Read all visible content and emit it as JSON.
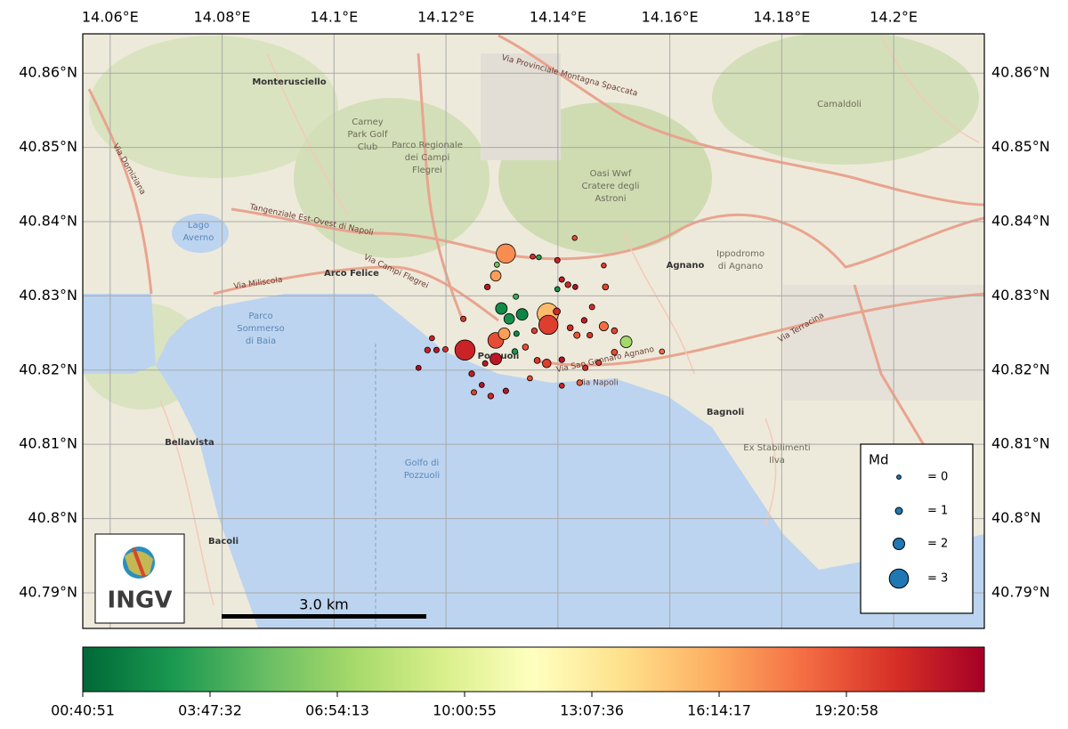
{
  "chart_data": {
    "type": "scatter",
    "xlim": [
      14.0551,
      14.2162
    ],
    "ylim": [
      40.7852,
      40.8653
    ],
    "xticks": [
      {
        "value": 14.06,
        "label": "14.06°E"
      },
      {
        "value": 14.08,
        "label": "14.08°E"
      },
      {
        "value": 14.1,
        "label": "14.1°E"
      },
      {
        "value": 14.12,
        "label": "14.12°E"
      },
      {
        "value": 14.14,
        "label": "14.14°E"
      },
      {
        "value": 14.16,
        "label": "14.16°E"
      },
      {
        "value": 14.18,
        "label": "14.18°E"
      },
      {
        "value": 14.2,
        "label": "14.2°E"
      }
    ],
    "yticks": [
      {
        "value": 40.79,
        "label": "40.79°N"
      },
      {
        "value": 40.8,
        "label": "40.8°N"
      },
      {
        "value": 40.81,
        "label": "40.81°N"
      },
      {
        "value": 40.82,
        "label": "40.82°N"
      },
      {
        "value": 40.83,
        "label": "40.83°N"
      },
      {
        "value": 40.84,
        "label": "40.84°N"
      },
      {
        "value": 40.85,
        "label": "40.85°N"
      },
      {
        "value": 40.86,
        "label": "40.86°N"
      }
    ],
    "grid": true,
    "x": [
      14.1382,
      14.1234,
      14.1307,
      14.1383,
      14.1289,
      14.1289,
      14.1304,
      14.1289,
      14.1299,
      14.1336,
      14.1313,
      14.1522,
      14.1482,
      14.138,
      14.1398,
      14.1323,
      14.1326,
      14.143,
      14.1355,
      14.1399,
      14.1482,
      14.1274,
      14.1407,
      14.1418,
      14.1431,
      14.1485,
      14.1231,
      14.1183,
      14.1167,
      14.1151,
      14.1199,
      14.1246,
      14.1264,
      14.125,
      14.128,
      14.1307,
      14.135,
      14.1407,
      14.1439,
      14.1449,
      14.1473,
      14.1501,
      14.1586,
      14.1457,
      14.1501,
      14.1434,
      14.1422,
      14.1447,
      14.1461,
      14.1407,
      14.1363,
      14.1175,
      14.127,
      14.1358,
      14.1342,
      14.1366,
      14.1399,
      14.1325,
      14.1291
    ],
    "y": [
      40.8276,
      40.8227,
      40.8357,
      40.8261,
      40.8327,
      40.824,
      40.8249,
      40.8215,
      40.8283,
      40.8275,
      40.8269,
      40.8238,
      40.8259,
      40.8209,
      40.8279,
      40.8225,
      40.8249,
      40.8378,
      40.8353,
      40.8348,
      40.8341,
      40.8312,
      40.8322,
      40.8315,
      40.8312,
      40.8312,
      40.8269,
      40.8227,
      40.8227,
      40.8203,
      40.8228,
      40.8195,
      40.818,
      40.817,
      40.8165,
      40.8172,
      40.8189,
      40.8179,
      40.8183,
      40.8203,
      40.821,
      40.8224,
      40.8225,
      40.8247,
      40.8253,
      40.8247,
      40.8257,
      40.8267,
      40.8285,
      40.8214,
      40.8213,
      40.8243,
      40.8209,
      40.8253,
      40.8231,
      40.8352,
      40.8309,
      40.8299,
      40.8342
    ],
    "md": [
      3.2,
      3.1,
      3,
      3,
      1.8,
      2.6,
      2,
      2,
      2,
      2,
      1.8,
      2,
      1.5,
      1.4,
      1,
      0.6,
      0.5,
      0.3,
      0.4,
      0.5,
      0.3,
      0.6,
      0.5,
      0.6,
      0.4,
      0.7,
      0.5,
      0.5,
      0.6,
      0.4,
      0.5,
      0.6,
      0.4,
      0.5,
      0.6,
      0.5,
      0.4,
      0.4,
      0.6,
      0.5,
      0.5,
      0.7,
      0.4,
      0.6,
      0.7,
      0.8,
      0.7,
      0.6,
      0.5,
      0.6,
      0.7,
      0.4,
      0.5,
      0.6,
      0.7,
      0.3,
      0.4,
      0.5,
      0.4
    ],
    "time": [
      56000,
      76000,
      62000,
      72000,
      60000,
      70000,
      60000,
      78000,
      8000,
      7000,
      9000,
      26000,
      66000,
      72000,
      75000,
      10000,
      8000,
      70000,
      74000,
      76000,
      72000,
      78000,
      77000,
      75000,
      79000,
      71000,
      73000,
      78000,
      76000,
      80000,
      74000,
      77000,
      79000,
      72000,
      75000,
      78000,
      70000,
      76000,
      68000,
      74000,
      72000,
      70000,
      66000,
      73000,
      71000,
      69000,
      75000,
      77000,
      74000,
      79000,
      73000,
      76000,
      78000,
      72000,
      70000,
      12000,
      9000,
      14000,
      20000
    ],
    "point_edge_color": "#000000",
    "size_legend": {
      "title": "Md",
      "values": [
        0,
        1,
        2,
        3
      ],
      "labels": [
        "= 0",
        "= 1",
        "= 2",
        "= 3"
      ],
      "color": "#1f77b4"
    },
    "colorbar": {
      "lim": [
        2451,
        81797
      ],
      "ticks": [
        {
          "value": 2451,
          "label": "00:40:51"
        },
        {
          "value": 13652,
          "label": "03:47:32"
        },
        {
          "value": 24853,
          "label": "06:54:13"
        },
        {
          "value": 36055,
          "label": "10:00:55"
        },
        {
          "value": 47256,
          "label": "13:07:36"
        },
        {
          "value": 58457,
          "label": "16:14:17"
        },
        {
          "value": 69658,
          "label": "19:20:58"
        }
      ],
      "colors": [
        "#006837",
        "#1a9850",
        "#66bd63",
        "#a6d96a",
        "#d9ef8b",
        "#ffffbf",
        "#fee08b",
        "#fdae61",
        "#f46d43",
        "#d73027",
        "#a50026"
      ]
    },
    "scale_bar": "3.0 km",
    "logo": "INGV"
  },
  "map_labels": [
    [
      "Monterusciello"
    ],
    [
      "Arco Felice"
    ],
    [
      "Pozzuoli"
    ],
    [
      "Agnano"
    ],
    [
      "Bagnoli"
    ],
    [
      "Bacoli"
    ],
    [
      "Bellavista"
    ],
    [
      "Lago",
      "Averno"
    ],
    [
      "Golfo di",
      "Pozzuoli"
    ],
    [
      "Parco",
      "Sommerso",
      "di Baia"
    ],
    [
      "Ippodromo",
      "di Agnano"
    ],
    [
      "Camaldoli"
    ],
    [
      "Oasi Wwf",
      "Cratere degli",
      "Astroni"
    ],
    [
      "Parco Regionale",
      "dei Campi",
      "Flegrei"
    ],
    [
      "Carney",
      "Park Golf",
      "Club"
    ],
    [
      "Ex Stabilimenti",
      "Ilva"
    ],
    [
      "Tangenziale Est-Ovest di Napoli"
    ],
    [
      "Via Miliscola"
    ],
    [
      "Via Campi Flegrei"
    ],
    [
      "Via Napoli"
    ],
    [
      "Via Terracina"
    ],
    [
      "Via Provinciale Montagna Spaccata"
    ],
    [
      "Via San Gennaro Agnano"
    ],
    [
      "Via Domiziana"
    ]
  ]
}
